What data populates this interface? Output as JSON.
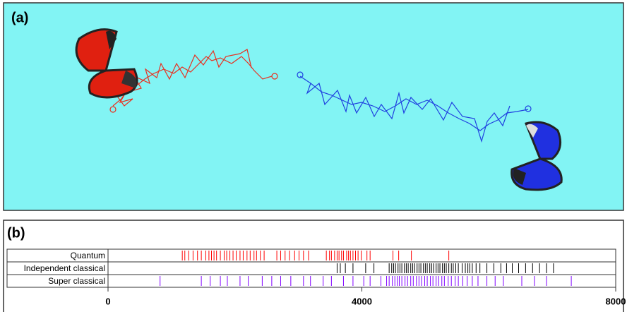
{
  "panel_a": {
    "label": "(a)"
  },
  "chart_data": {
    "type": "raster",
    "label": "(b)",
    "series": [
      {
        "name": "Quantum",
        "color": "#ff0000",
        "values": [
          1170,
          1210,
          1270,
          1340,
          1410,
          1470,
          1540,
          1590,
          1630,
          1670,
          1710,
          1770,
          1830,
          1870,
          1920,
          1970,
          2020,
          2080,
          2130,
          2190,
          2240,
          2300,
          2340,
          2400,
          2460,
          2660,
          2720,
          2790,
          2860,
          2940,
          3010,
          3080,
          3160,
          3440,
          3490,
          3520,
          3570,
          3610,
          3640,
          3680,
          3710,
          3760,
          3790,
          3820,
          3860,
          3900,
          3940,
          3990,
          4080,
          4130,
          4490,
          4580,
          4780,
          5370
        ]
      },
      {
        "name": "Independent classical",
        "color": "#000000",
        "values": [
          3610,
          3660,
          3740,
          3860,
          4060,
          4190,
          4430,
          4470,
          4500,
          4530,
          4570,
          4600,
          4630,
          4670,
          4700,
          4730,
          4770,
          4800,
          4830,
          4870,
          4900,
          4930,
          4970,
          5000,
          5030,
          5070,
          5100,
          5130,
          5170,
          5200,
          5230,
          5270,
          5300,
          5330,
          5370,
          5410,
          5440,
          5480,
          5520,
          5580,
          5630,
          5670,
          5700,
          5740,
          5800,
          5860,
          5970,
          6080,
          6190,
          6280,
          6370,
          6470,
          6580,
          6690,
          6800,
          6910,
          7020
        ]
      },
      {
        "name": "Super classical",
        "color": "#8000ff",
        "values": [
          820,
          1470,
          1610,
          1770,
          1880,
          2080,
          2210,
          2430,
          2580,
          2720,
          2880,
          3080,
          3190,
          3390,
          3520,
          3710,
          3860,
          4030,
          4130,
          4300,
          4390,
          4430,
          4480,
          4520,
          4560,
          4590,
          4630,
          4680,
          4720,
          4770,
          4810,
          4860,
          4900,
          4940,
          4990,
          5030,
          5080,
          5120,
          5170,
          5210,
          5260,
          5300,
          5360,
          5410,
          5470,
          5520,
          5590,
          5660,
          5740,
          5830,
          5970,
          6100,
          6230,
          6520,
          6720,
          6910,
          7300
        ]
      }
    ],
    "xlim": [
      0,
      8000
    ],
    "xticks": [
      0,
      4000,
      8000
    ]
  }
}
